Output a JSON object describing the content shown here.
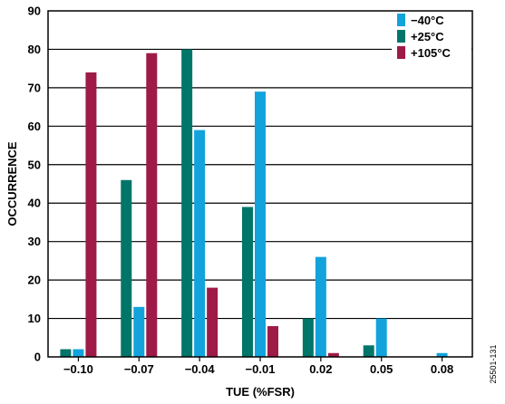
{
  "chart_data": {
    "type": "bar",
    "title": "",
    "xlabel": "TUE (%FSR)",
    "ylabel": "OCCURRENCE",
    "ylim": [
      0,
      90
    ],
    "yticks": [
      "0",
      "10",
      "20",
      "30",
      "40",
      "50",
      "60",
      "70",
      "80",
      "90"
    ],
    "categories": [
      "−0.10",
      "−0.07",
      "−0.04",
      "−0.01",
      "0.02",
      "0.05",
      "0.08"
    ],
    "series": [
      {
        "name": "−40°C",
        "color": "#13a3dc",
        "values": [
          2,
          13,
          59,
          69,
          26,
          10,
          1
        ]
      },
      {
        "name": "+25°C",
        "color": "#00756a",
        "values": [
          2,
          46,
          80,
          39,
          10,
          3,
          0
        ]
      },
      {
        "name": "+105°C",
        "color": "#9e1b47",
        "values": [
          74,
          79,
          18,
          8,
          1,
          0,
          0
        ]
      }
    ],
    "grid": true,
    "legend_position": "top-right",
    "figure_id": "25501-131"
  }
}
